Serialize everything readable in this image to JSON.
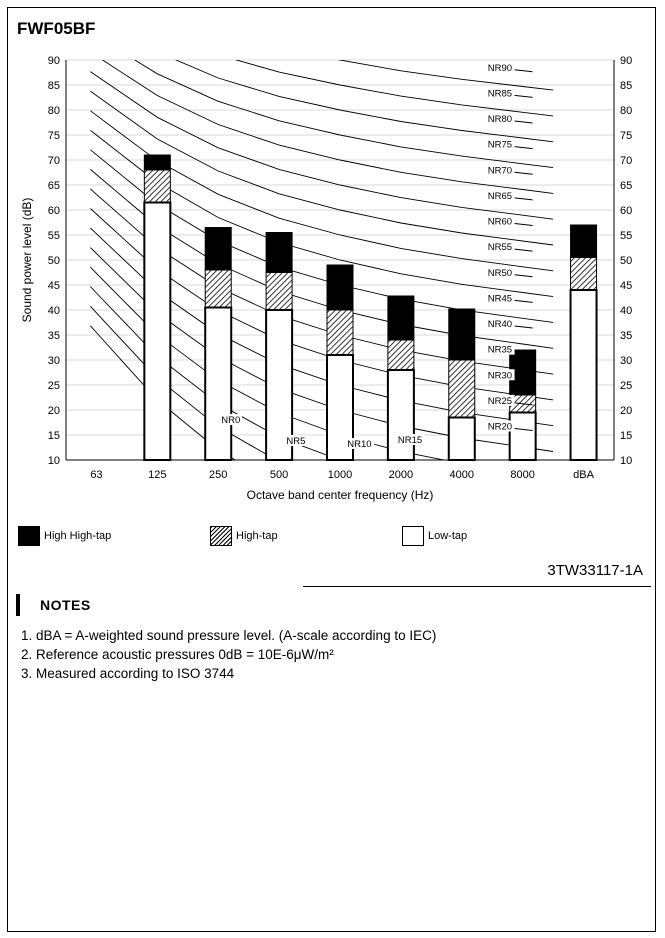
{
  "title": "FWF05BF",
  "chart_data": {
    "type": "bar",
    "stacked": true,
    "categories": [
      "63",
      "125",
      "250",
      "500",
      "1000",
      "2000",
      "4000",
      "8000",
      "dBA"
    ],
    "series": [
      {
        "name": "Low-tap",
        "values": [
          null,
          61.5,
          40.5,
          40.0,
          31.0,
          28.0,
          18.5,
          19.5,
          44.0
        ]
      },
      {
        "name": "High-tap",
        "values": [
          null,
          68.0,
          48.0,
          47.5,
          40.0,
          34.0,
          30.0,
          23.0,
          50.5
        ]
      },
      {
        "name": "High High-tap",
        "values": [
          null,
          71.0,
          56.5,
          55.5,
          49.0,
          42.8,
          40.2,
          32.0,
          57.0
        ]
      }
    ],
    "xlabel": "Octave band center frequency (Hz)",
    "ylabel": "Sound power level (dB)",
    "ylim": [
      10,
      90
    ],
    "yticks": [
      10,
      15,
      20,
      25,
      30,
      35,
      40,
      45,
      50,
      55,
      60,
      65,
      70,
      75,
      80,
      85,
      90
    ],
    "y_axis_right": true,
    "grid": true,
    "nr_curve_labels": [
      "NR0",
      "NR5",
      "NR10",
      "NR15",
      "NR20",
      "NR25",
      "NR30",
      "NR35",
      "NR40",
      "NR45",
      "NR50",
      "NR55",
      "NR60",
      "NR65",
      "NR70",
      "NR75",
      "NR80",
      "NR85",
      "NR90"
    ],
    "legend_position": "bottom"
  },
  "legend": {
    "high_high": "High High-tap",
    "high": "High-tap",
    "low": "Low-tap"
  },
  "doc_number": "3TW33117-1A",
  "notes": {
    "heading": "NOTES",
    "items": [
      "dBA = A-weighted sound pressure level. (A-scale according to IEC)",
      "Reference acoustic pressures 0dB = 10E-6μW/m²",
      "Measured according to ISO 3744"
    ]
  }
}
